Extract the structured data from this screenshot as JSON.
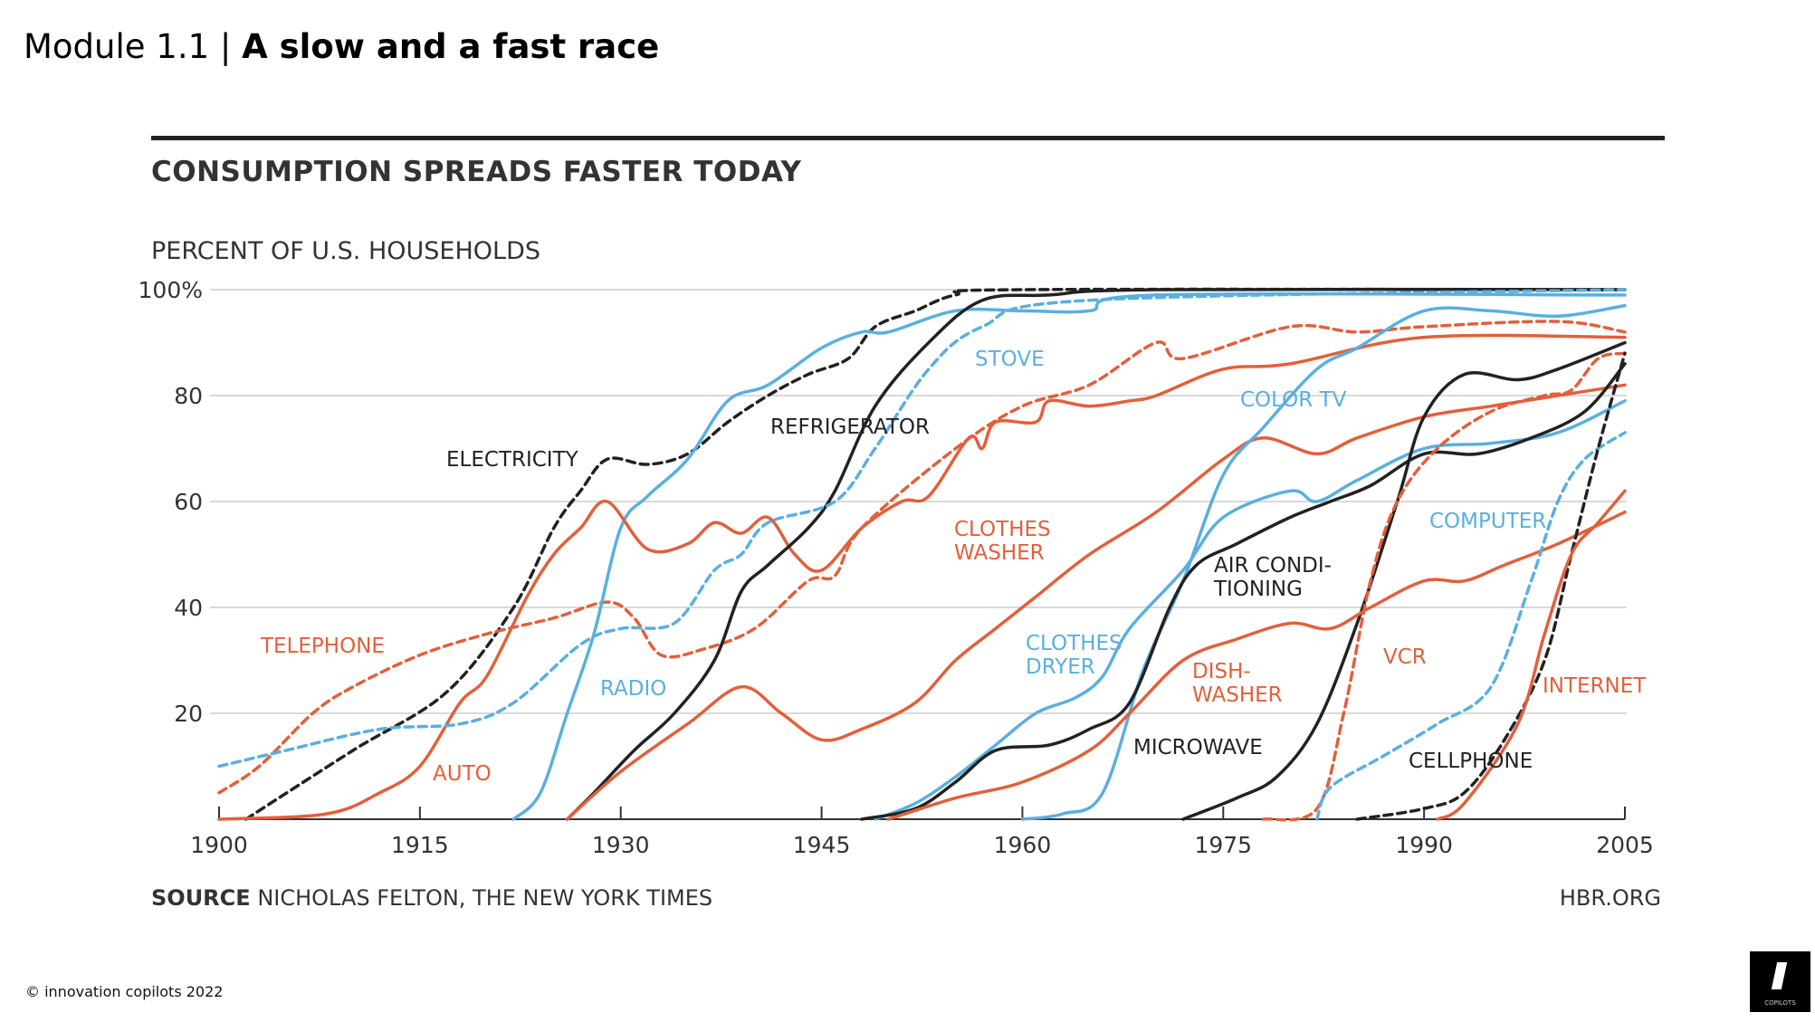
{
  "header": {
    "module": "Module 1.1 |",
    "title": "A slow and a fast race"
  },
  "footer": {
    "copyright_icon": "copyright-icon",
    "text": "innovation copilots 2022",
    "logo_text": "COPILOTS"
  },
  "colors": {
    "blue": "#5aafe0",
    "orange": "#e2603b",
    "black": "#222222",
    "grid": "#d9d9d9"
  },
  "chart_data": {
    "type": "line",
    "title": "CONSUMPTION SPREADS FASTER TODAY",
    "ylabel": "PERCENT OF U.S. HOUSEHOLDS",
    "xlim": [
      1900,
      2005
    ],
    "ylim": [
      0,
      100
    ],
    "x_ticks": [
      "1900",
      "1915",
      "1930",
      "1945",
      "1960",
      "1975",
      "1990",
      "2005"
    ],
    "y_ticks": [
      {
        "v": 20,
        "label": "20"
      },
      {
        "v": 40,
        "label": "40"
      },
      {
        "v": 60,
        "label": "60"
      },
      {
        "v": 80,
        "label": "80"
      },
      {
        "v": 100,
        "label": "100%"
      }
    ],
    "grid": true,
    "source_label": "SOURCE",
    "source": "NICHOLAS FELTON, THE NEW YORK TIMES",
    "credit": "HBR.ORG",
    "series": [
      {
        "name": "ELECTRICITY",
        "color": "black",
        "dash": true,
        "points": [
          [
            1902,
            0
          ],
          [
            1910,
            13
          ],
          [
            1917,
            24
          ],
          [
            1922,
            40
          ],
          [
            1925,
            55
          ],
          [
            1927,
            62
          ],
          [
            1929,
            68
          ],
          [
            1932,
            67
          ],
          [
            1935,
            69
          ],
          [
            1938,
            75
          ],
          [
            1941,
            80
          ],
          [
            1944,
            84
          ],
          [
            1947,
            87
          ],
          [
            1949,
            93
          ],
          [
            1952,
            96
          ],
          [
            1955,
            99
          ],
          [
            1960,
            100
          ],
          [
            2005,
            100
          ]
        ]
      },
      {
        "name": "TELEPHONE",
        "color": "orange",
        "dash": true,
        "points": [
          [
            1900,
            5
          ],
          [
            1903,
            10
          ],
          [
            1907,
            20
          ],
          [
            1910,
            25
          ],
          [
            1915,
            31
          ],
          [
            1920,
            35
          ],
          [
            1925,
            38
          ],
          [
            1929,
            41
          ],
          [
            1931,
            38
          ],
          [
            1933,
            31
          ],
          [
            1936,
            32
          ],
          [
            1940,
            36
          ],
          [
            1944,
            45
          ],
          [
            1946,
            46
          ],
          [
            1948,
            55
          ],
          [
            1955,
            70
          ],
          [
            1960,
            78
          ],
          [
            1965,
            82
          ],
          [
            1970,
            90
          ],
          [
            1972,
            87
          ],
          [
            1980,
            93
          ],
          [
            1985,
            92
          ],
          [
            1990,
            93
          ],
          [
            2000,
            94
          ],
          [
            2005,
            92
          ]
        ]
      },
      {
        "name": "RADIO",
        "color": "blue",
        "dash": false,
        "points": [
          [
            1922,
            0
          ],
          [
            1924,
            5
          ],
          [
            1926,
            20
          ],
          [
            1928,
            35
          ],
          [
            1930,
            55
          ],
          [
            1932,
            61
          ],
          [
            1935,
            68
          ],
          [
            1938,
            79
          ],
          [
            1941,
            82
          ],
          [
            1945,
            89
          ],
          [
            1948,
            92
          ],
          [
            1950,
            92
          ],
          [
            1955,
            96
          ],
          [
            1960,
            96
          ],
          [
            1965,
            96
          ],
          [
            1970,
            99
          ],
          [
            2005,
            99
          ]
        ]
      },
      {
        "name": "AUTO",
        "color": "orange",
        "dash": false,
        "points": [
          [
            1900,
            0
          ],
          [
            1908,
            1
          ],
          [
            1912,
            5
          ],
          [
            1915,
            10
          ],
          [
            1918,
            22
          ],
          [
            1920,
            27
          ],
          [
            1923,
            42
          ],
          [
            1925,
            50
          ],
          [
            1927,
            55
          ],
          [
            1929,
            60
          ],
          [
            1932,
            51
          ],
          [
            1935,
            52
          ],
          [
            1937,
            56
          ],
          [
            1939,
            54
          ],
          [
            1941,
            57
          ],
          [
            1943,
            50
          ],
          [
            1945,
            47
          ],
          [
            1948,
            55
          ],
          [
            1951,
            60
          ],
          [
            1953,
            61
          ],
          [
            1956,
            72
          ],
          [
            1957,
            70
          ],
          [
            1958,
            75
          ],
          [
            1961,
            75
          ],
          [
            1962,
            79
          ],
          [
            1965,
            78
          ],
          [
            1968,
            79
          ],
          [
            1970,
            80
          ],
          [
            1975,
            85
          ],
          [
            1980,
            86
          ],
          [
            1990,
            91
          ],
          [
            2005,
            91
          ]
        ]
      },
      {
        "name": "REFRIGERATOR",
        "color": "black",
        "dash": false,
        "points": [
          [
            1926,
            0
          ],
          [
            1928,
            5
          ],
          [
            1931,
            13
          ],
          [
            1934,
            20
          ],
          [
            1937,
            30
          ],
          [
            1939,
            43
          ],
          [
            1941,
            48
          ],
          [
            1944,
            55
          ],
          [
            1946,
            62
          ],
          [
            1949,
            78
          ],
          [
            1953,
            90
          ],
          [
            1957,
            98
          ],
          [
            1962,
            99
          ],
          [
            1970,
            100
          ],
          [
            2005,
            100
          ]
        ]
      },
      {
        "name": "STOVE",
        "color": "blue",
        "dash": true,
        "points": [
          [
            1900,
            10
          ],
          [
            1905,
            13
          ],
          [
            1912,
            17
          ],
          [
            1918,
            18
          ],
          [
            1922,
            22
          ],
          [
            1927,
            33
          ],
          [
            1930,
            36
          ],
          [
            1934,
            37
          ],
          [
            1937,
            47
          ],
          [
            1939,
            50
          ],
          [
            1941,
            56
          ],
          [
            1946,
            60
          ],
          [
            1949,
            70
          ],
          [
            1953,
            85
          ],
          [
            1957,
            93
          ],
          [
            1965,
            98
          ],
          [
            2005,
            100
          ]
        ]
      },
      {
        "name": "CLOTHES WASHER",
        "color": "orange",
        "dash": false,
        "points": [
          [
            1926,
            0
          ],
          [
            1930,
            9
          ],
          [
            1935,
            18
          ],
          [
            1939,
            25
          ],
          [
            1942,
            20
          ],
          [
            1945,
            15
          ],
          [
            1948,
            17
          ],
          [
            1952,
            22
          ],
          [
            1955,
            30
          ],
          [
            1958,
            36
          ],
          [
            1961,
            42
          ],
          [
            1965,
            50
          ],
          [
            1970,
            58
          ],
          [
            1975,
            68
          ],
          [
            1978,
            72
          ],
          [
            1982,
            69
          ],
          [
            1985,
            72
          ],
          [
            1990,
            76
          ],
          [
            1995,
            78
          ],
          [
            2000,
            80
          ],
          [
            2005,
            82
          ]
        ]
      },
      {
        "name": "CLOTHES DRYER",
        "color": "blue",
        "dash": false,
        "points": [
          [
            1949,
            0
          ],
          [
            1952,
            3
          ],
          [
            1955,
            8
          ],
          [
            1958,
            14
          ],
          [
            1961,
            20
          ],
          [
            1964,
            23
          ],
          [
            1966,
            27
          ],
          [
            1968,
            36
          ],
          [
            1972,
            47
          ],
          [
            1975,
            57
          ],
          [
            1980,
            62
          ],
          [
            1982,
            60
          ],
          [
            1985,
            64
          ],
          [
            1990,
            70
          ],
          [
            1995,
            71
          ],
          [
            2000,
            73
          ],
          [
            2005,
            79
          ]
        ]
      },
      {
        "name": "COLOR TV",
        "color": "blue",
        "dash": false,
        "points": [
          [
            1960,
            0
          ],
          [
            1963,
            1
          ],
          [
            1966,
            5
          ],
          [
            1969,
            28
          ],
          [
            1972,
            45
          ],
          [
            1975,
            65
          ],
          [
            1978,
            74
          ],
          [
            1982,
            85
          ],
          [
            1985,
            89
          ],
          [
            1990,
            96
          ],
          [
            1995,
            96
          ],
          [
            2000,
            95
          ],
          [
            2005,
            97
          ]
        ]
      },
      {
        "name": "AIR CONDITIONING",
        "color": "black",
        "dash": false,
        "points": [
          [
            1948,
            0
          ],
          [
            1952,
            2
          ],
          [
            1955,
            7
          ],
          [
            1958,
            13
          ],
          [
            1962,
            14
          ],
          [
            1965,
            17
          ],
          [
            1968,
            22
          ],
          [
            1971,
            40
          ],
          [
            1973,
            48
          ],
          [
            1976,
            52
          ],
          [
            1980,
            57
          ],
          [
            1983,
            60
          ],
          [
            1986,
            63
          ],
          [
            1990,
            69
          ],
          [
            1994,
            69
          ],
          [
            1998,
            72
          ],
          [
            2002,
            77
          ],
          [
            2005,
            86
          ]
        ]
      },
      {
        "name": "MICROWAVE",
        "color": "black",
        "dash": false,
        "points": [
          [
            1972,
            0
          ],
          [
            1976,
            4
          ],
          [
            1979,
            8
          ],
          [
            1982,
            18
          ],
          [
            1985,
            37
          ],
          [
            1988,
            60
          ],
          [
            1990,
            76
          ],
          [
            1993,
            84
          ],
          [
            1997,
            83
          ],
          [
            2000,
            85
          ],
          [
            2005,
            90
          ]
        ]
      },
      {
        "name": "DISHWASHER",
        "color": "orange",
        "dash": false,
        "points": [
          [
            1950,
            0
          ],
          [
            1955,
            4
          ],
          [
            1960,
            7
          ],
          [
            1965,
            13
          ],
          [
            1968,
            20
          ],
          [
            1972,
            30
          ],
          [
            1976,
            34
          ],
          [
            1980,
            37
          ],
          [
            1983,
            36
          ],
          [
            1986,
            40
          ],
          [
            1990,
            45
          ],
          [
            1993,
            45
          ],
          [
            1996,
            48
          ],
          [
            2000,
            52
          ],
          [
            2005,
            58
          ]
        ]
      },
      {
        "name": "VCR",
        "color": "orange",
        "dash": true,
        "points": [
          [
            1978,
            0
          ],
          [
            1982,
            2
          ],
          [
            1984,
            20
          ],
          [
            1986,
            45
          ],
          [
            1988,
            60
          ],
          [
            1991,
            70
          ],
          [
            1995,
            77
          ],
          [
            1999,
            80
          ],
          [
            2001,
            81
          ],
          [
            2003,
            87
          ],
          [
            2005,
            88
          ]
        ]
      },
      {
        "name": "COMPUTER",
        "color": "blue",
        "dash": true,
        "points": [
          [
            1982,
            0
          ],
          [
            1983,
            6
          ],
          [
            1987,
            12
          ],
          [
            1991,
            18
          ],
          [
            1995,
            25
          ],
          [
            1998,
            45
          ],
          [
            2000,
            60
          ],
          [
            2002,
            68
          ],
          [
            2005,
            73
          ]
        ]
      },
      {
        "name": "CELLPHONE",
        "color": "black",
        "dash": true,
        "points": [
          [
            1985,
            0
          ],
          [
            1990,
            2
          ],
          [
            1993,
            5
          ],
          [
            1996,
            15
          ],
          [
            1999,
            30
          ],
          [
            2001,
            50
          ],
          [
            2003,
            70
          ],
          [
            2005,
            88
          ]
        ]
      },
      {
        "name": "INTERNET",
        "color": "orange",
        "dash": false,
        "points": [
          [
            1991,
            0
          ],
          [
            1993,
            3
          ],
          [
            1997,
            18
          ],
          [
            1999,
            35
          ],
          [
            2001,
            50
          ],
          [
            2003,
            56
          ],
          [
            2005,
            62
          ]
        ]
      }
    ],
    "labels": [
      {
        "lines": [
          "ELECTRICITY"
        ],
        "color": "black"
      },
      {
        "lines": [
          "REFRIGERATOR"
        ],
        "color": "black"
      },
      {
        "lines": [
          "STOVE"
        ],
        "color": "blue"
      },
      {
        "lines": [
          "COLOR TV"
        ],
        "color": "blue"
      },
      {
        "lines": [
          "TELEPHONE"
        ],
        "color": "orange"
      },
      {
        "lines": [
          "RADIO"
        ],
        "color": "blue"
      },
      {
        "lines": [
          "AUTO"
        ],
        "color": "orange"
      },
      {
        "lines": [
          "CLOTHES",
          "WASHER"
        ],
        "color": "orange"
      },
      {
        "lines": [
          "CLOTHES",
          "DRYER"
        ],
        "color": "blue"
      },
      {
        "lines": [
          "AIR CONDI-",
          "TIONING"
        ],
        "color": "black"
      },
      {
        "lines": [
          "DISH-",
          "WASHER"
        ],
        "color": "orange"
      },
      {
        "lines": [
          "MICROWAVE"
        ],
        "color": "black"
      },
      {
        "lines": [
          "VCR"
        ],
        "color": "orange"
      },
      {
        "lines": [
          "COMPUTER"
        ],
        "color": "blue"
      },
      {
        "lines": [
          "CELLPHONE"
        ],
        "color": "black"
      },
      {
        "lines": [
          "INTERNET"
        ],
        "color": "orange"
      }
    ]
  }
}
